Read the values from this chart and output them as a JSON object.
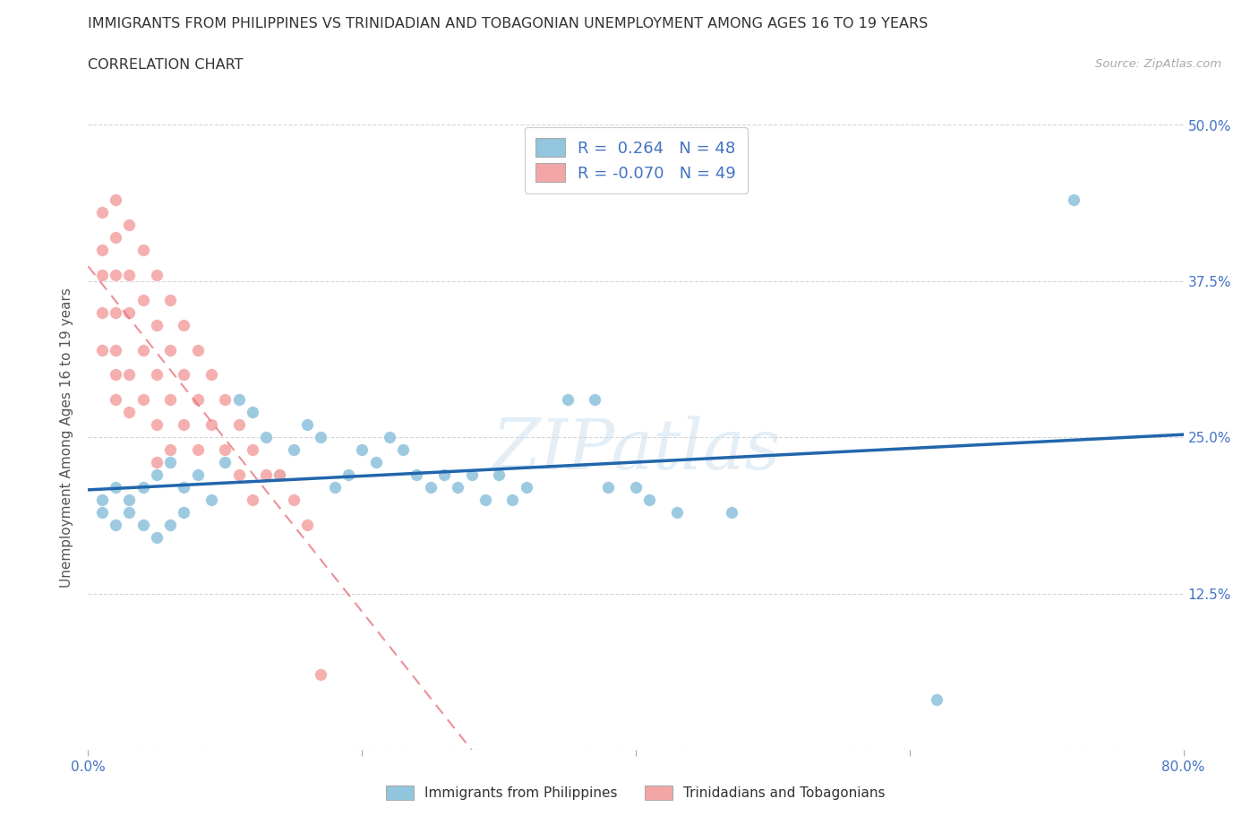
{
  "title": "IMMIGRANTS FROM PHILIPPINES VS TRINIDADIAN AND TOBAGONIAN UNEMPLOYMENT AMONG AGES 16 TO 19 YEARS",
  "subtitle": "CORRELATION CHART",
  "source": "Source: ZipAtlas.com",
  "ylabel": "Unemployment Among Ages 16 to 19 years",
  "watermark": "ZIPatlas",
  "xlim": [
    0.0,
    0.8
  ],
  "ylim": [
    0.0,
    0.5
  ],
  "xticks": [
    0.0,
    0.2,
    0.4,
    0.6,
    0.8
  ],
  "yticks": [
    0.0,
    0.125,
    0.25,
    0.375,
    0.5
  ],
  "r_blue": 0.264,
  "n_blue": 48,
  "r_pink": -0.07,
  "n_pink": 49,
  "blue_color": "#92c5de",
  "pink_color": "#f4a6a6",
  "blue_line_color": "#2166ac",
  "pink_line_color": "#e8747c",
  "legend_label_blue": "Immigrants from Philippines",
  "legend_label_pink": "Trinidadians and Tobagonians",
  "blue_scatter_x": [
    0.01,
    0.01,
    0.02,
    0.02,
    0.03,
    0.03,
    0.04,
    0.04,
    0.05,
    0.05,
    0.06,
    0.06,
    0.07,
    0.07,
    0.08,
    0.09,
    0.1,
    0.11,
    0.12,
    0.13,
    0.14,
    0.15,
    0.16,
    0.17,
    0.18,
    0.19,
    0.2,
    0.21,
    0.22,
    0.23,
    0.24,
    0.25,
    0.26,
    0.27,
    0.28,
    0.29,
    0.3,
    0.31,
    0.32,
    0.35,
    0.37,
    0.38,
    0.4,
    0.41,
    0.43,
    0.47,
    0.62,
    0.72
  ],
  "blue_scatter_y": [
    0.2,
    0.19,
    0.21,
    0.18,
    0.2,
    0.19,
    0.21,
    0.18,
    0.22,
    0.17,
    0.23,
    0.18,
    0.21,
    0.19,
    0.22,
    0.2,
    0.23,
    0.28,
    0.27,
    0.25,
    0.22,
    0.24,
    0.26,
    0.25,
    0.21,
    0.22,
    0.24,
    0.23,
    0.25,
    0.24,
    0.22,
    0.21,
    0.22,
    0.21,
    0.22,
    0.2,
    0.22,
    0.2,
    0.21,
    0.28,
    0.28,
    0.21,
    0.21,
    0.2,
    0.19,
    0.19,
    0.04,
    0.44
  ],
  "pink_scatter_x": [
    0.01,
    0.01,
    0.01,
    0.01,
    0.01,
    0.02,
    0.02,
    0.02,
    0.02,
    0.02,
    0.02,
    0.02,
    0.03,
    0.03,
    0.03,
    0.03,
    0.03,
    0.04,
    0.04,
    0.04,
    0.04,
    0.05,
    0.05,
    0.05,
    0.05,
    0.05,
    0.06,
    0.06,
    0.06,
    0.06,
    0.07,
    0.07,
    0.07,
    0.08,
    0.08,
    0.08,
    0.09,
    0.09,
    0.1,
    0.1,
    0.11,
    0.11,
    0.12,
    0.12,
    0.13,
    0.14,
    0.15,
    0.16,
    0.17
  ],
  "pink_scatter_y": [
    0.43,
    0.4,
    0.38,
    0.35,
    0.32,
    0.44,
    0.41,
    0.38,
    0.35,
    0.32,
    0.3,
    0.28,
    0.42,
    0.38,
    0.35,
    0.3,
    0.27,
    0.4,
    0.36,
    0.32,
    0.28,
    0.38,
    0.34,
    0.3,
    0.26,
    0.23,
    0.36,
    0.32,
    0.28,
    0.24,
    0.34,
    0.3,
    0.26,
    0.32,
    0.28,
    0.24,
    0.3,
    0.26,
    0.28,
    0.24,
    0.26,
    0.22,
    0.24,
    0.2,
    0.22,
    0.22,
    0.2,
    0.18,
    0.06
  ],
  "background_color": "#ffffff",
  "grid_color": "#cccccc",
  "tick_color": "#4472c4",
  "label_color": "#555555",
  "source_color": "#aaaaaa",
  "title_color": "#333333"
}
